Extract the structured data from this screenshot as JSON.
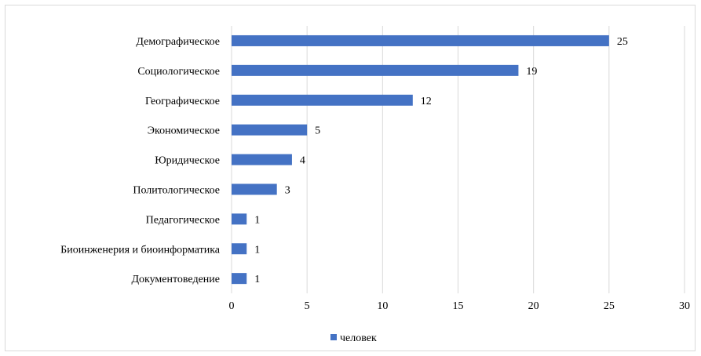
{
  "chart_data": {
    "type": "bar",
    "orientation": "horizontal",
    "categories": [
      "Демографическое",
      "Социологическое",
      "Географическое",
      "Экономическое",
      "Юридическое",
      "Политологическое",
      "Педагогическое",
      "Биоинженерия и биоинформатика",
      "Документоведение"
    ],
    "series": [
      {
        "name": "человек",
        "values": [
          25,
          19,
          12,
          5,
          4,
          3,
          1,
          1,
          1
        ],
        "color": "#4472c4"
      }
    ],
    "xlim": [
      0,
      30
    ],
    "xticks": [
      "0",
      "5",
      "10",
      "15",
      "20",
      "25",
      "30"
    ],
    "grid": "vertical",
    "legend": "bottom",
    "title": "",
    "xlabel": "",
    "ylabel": ""
  }
}
